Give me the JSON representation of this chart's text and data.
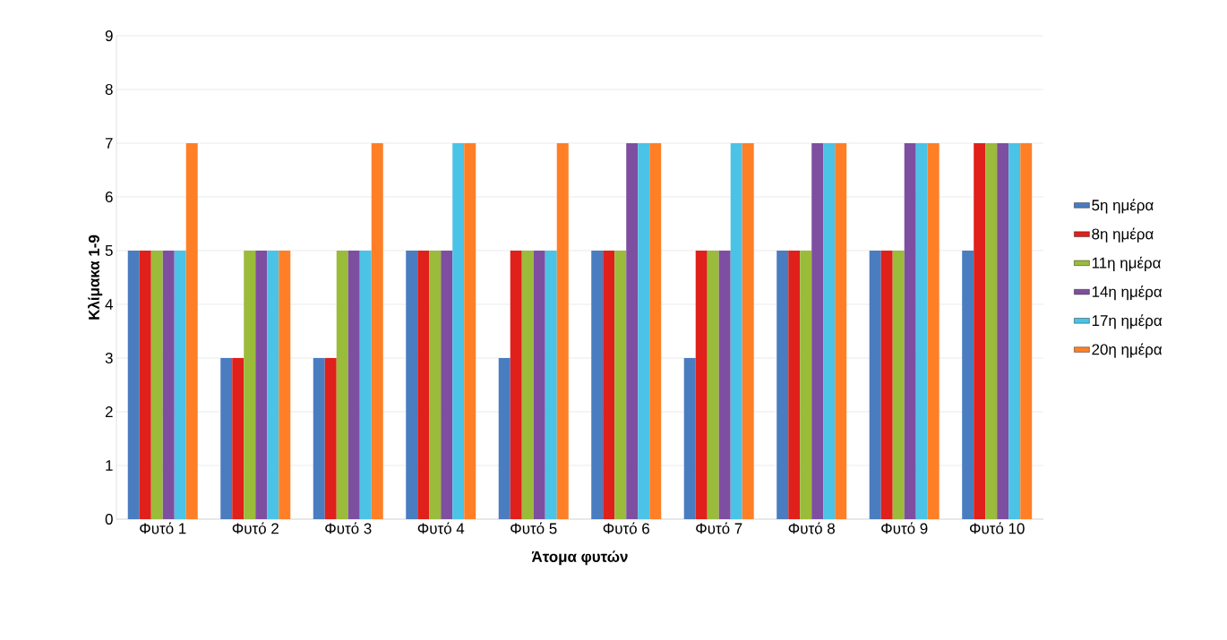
{
  "chart_data": {
    "type": "bar",
    "xlabel": "Άτομα φυτών",
    "ylabel": "Κλίμακα 1-9",
    "categories": [
      "Φυτό 1",
      "Φυτό 2",
      "Φυτό 3",
      "Φυτό 4",
      "Φυτό 5",
      "Φυτό 6",
      "Φυτό 7",
      "Φυτό 8",
      "Φυτό 9",
      "Φυτό 10"
    ],
    "series": [
      {
        "name": "5η ημέρα",
        "color": "#4a7cc0",
        "values": [
          5,
          3,
          3,
          5,
          3,
          5,
          3,
          5,
          5,
          5
        ]
      },
      {
        "name": "8η ημέρα",
        "color": "#e0201b",
        "values": [
          5,
          3,
          3,
          5,
          5,
          5,
          5,
          5,
          5,
          7
        ]
      },
      {
        "name": "11η ημέρα",
        "color": "#9bbb3b",
        "values": [
          5,
          5,
          5,
          5,
          5,
          5,
          5,
          5,
          5,
          7
        ]
      },
      {
        "name": "14η ημέρα",
        "color": "#7e4fa0",
        "values": [
          5,
          5,
          5,
          5,
          5,
          7,
          5,
          7,
          7,
          7
        ]
      },
      {
        "name": "17η ημέρα",
        "color": "#4bc3e6",
        "values": [
          5,
          5,
          5,
          7,
          5,
          7,
          7,
          7,
          7,
          7
        ]
      },
      {
        "name": "20η ημέρα",
        "color": "#ff7f27",
        "values": [
          7,
          5,
          7,
          7,
          7,
          7,
          7,
          7,
          7,
          7
        ]
      }
    ],
    "ylim": [
      0,
      9
    ],
    "yticks": [
      0,
      1,
      2,
      3,
      4,
      5,
      6,
      7,
      8,
      9
    ],
    "grid": "y",
    "legend": "right"
  }
}
